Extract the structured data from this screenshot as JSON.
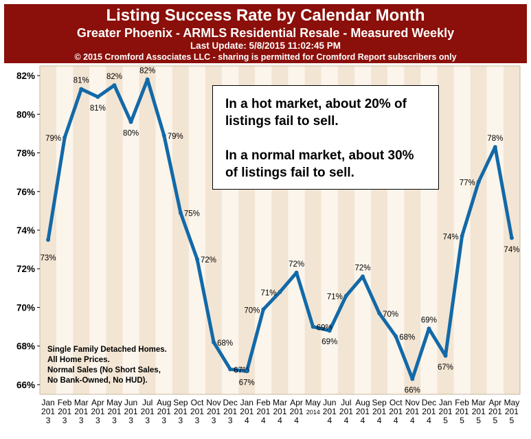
{
  "header": {
    "title": "Listing Success Rate by Calendar Month",
    "subtitle": "Greater Phoenix - ARMLS Residential Resale - Measured Weekly",
    "last_update": "Last Update: 5/8/2015 11:02:45 PM",
    "copyright": "© 2015 Cromford Associates LLC - sharing is permitted for Cromford Report subscribers only"
  },
  "callout": {
    "line1": "In a hot market, about 20% of listings fail to sell.",
    "line2": "In a normal market, about 30% of listings fail to sell."
  },
  "footnote": {
    "line1": "Single Family Detached Homes.",
    "line2": "All Home Prices.",
    "line3": "Normal Sales (No Short Sales,",
    "line4": "No Bank-Owned, No HUD)."
  },
  "colors": {
    "line": "#1269a8",
    "band_odd": "#f3e5d3",
    "band_even": "#fbf5ec",
    "banner": "#8b0f0a"
  },
  "chart_data": {
    "type": "line",
    "title": "Listing Success Rate by Calendar Month",
    "xlabel": "",
    "ylabel": "",
    "ylim": [
      65.5,
      82.5
    ],
    "y_ticks": [
      "66%",
      "68%",
      "70%",
      "72%",
      "74%",
      "76%",
      "78%",
      "80%",
      "82%"
    ],
    "y_tick_values": [
      66,
      68,
      70,
      72,
      74,
      76,
      78,
      80,
      82
    ],
    "categories": [
      {
        "month": "Jan",
        "year": "201",
        "yr": "3"
      },
      {
        "month": "Feb",
        "year": "201",
        "yr": "3"
      },
      {
        "month": "Mar",
        "year": "201",
        "yr": "3"
      },
      {
        "month": "Apr",
        "year": "201",
        "yr": "3"
      },
      {
        "month": "May",
        "year": "201",
        "yr": "3"
      },
      {
        "month": "Jun",
        "year": "201",
        "yr": "3"
      },
      {
        "month": "Jul",
        "year": "201",
        "yr": "3"
      },
      {
        "month": "Aug",
        "year": "201",
        "yr": "3"
      },
      {
        "month": "Sep",
        "year": "201",
        "yr": "3"
      },
      {
        "month": "Oct",
        "year": "201",
        "yr": "3"
      },
      {
        "month": "Nov",
        "year": "201",
        "yr": "3"
      },
      {
        "month": "Dec",
        "year": "201",
        "yr": "3"
      },
      {
        "month": "Jan",
        "year": "201",
        "yr": "4"
      },
      {
        "month": "Feb",
        "year": "201",
        "yr": "4"
      },
      {
        "month": "Mar",
        "year": "201",
        "yr": "4"
      },
      {
        "month": "Apr",
        "year": "201",
        "yr": "4"
      },
      {
        "month": "May",
        "year": "2014",
        "yr": ""
      },
      {
        "month": "Jun",
        "year": "201",
        "yr": "4"
      },
      {
        "month": "Jul",
        "year": "201",
        "yr": "4"
      },
      {
        "month": "Aug",
        "year": "201",
        "yr": "4"
      },
      {
        "month": "Sep",
        "year": "201",
        "yr": "4"
      },
      {
        "month": "Oct",
        "year": "201",
        "yr": "4"
      },
      {
        "month": "Nov",
        "year": "201",
        "yr": "4"
      },
      {
        "month": "Dec",
        "year": "201",
        "yr": "4"
      },
      {
        "month": "Jan",
        "year": "201",
        "yr": "5"
      },
      {
        "month": "Feb",
        "year": "201",
        "yr": "5"
      },
      {
        "month": "Mar",
        "year": "201",
        "yr": "5"
      },
      {
        "month": "Apr",
        "year": "201",
        "yr": "5"
      },
      {
        "month": "May",
        "year": "201",
        "yr": "5"
      }
    ],
    "series": [
      {
        "name": "Listing Success Rate",
        "values": [
          73.5,
          78.8,
          81.3,
          80.9,
          81.5,
          79.6,
          81.8,
          78.9,
          74.9,
          72.5,
          68.2,
          66.8,
          66.7,
          69.9,
          70.8,
          71.8,
          69.0,
          68.8,
          70.6,
          71.6,
          69.7,
          68.5,
          66.3,
          68.9,
          67.5,
          73.7,
          76.5,
          78.3,
          73.6
        ],
        "labels": [
          "73%",
          "79%",
          "81%",
          "81%",
          "82%",
          "80%",
          "82%",
          "79%",
          "75%",
          "72%",
          "68%",
          "67%",
          "67%",
          "70%",
          "71%",
          "72%",
          "69%",
          "69%",
          "71%",
          "72%",
          "70%",
          "68%",
          "66%",
          "69%",
          "67%",
          "74%",
          "77%",
          "78%",
          "74%"
        ]
      }
    ]
  }
}
